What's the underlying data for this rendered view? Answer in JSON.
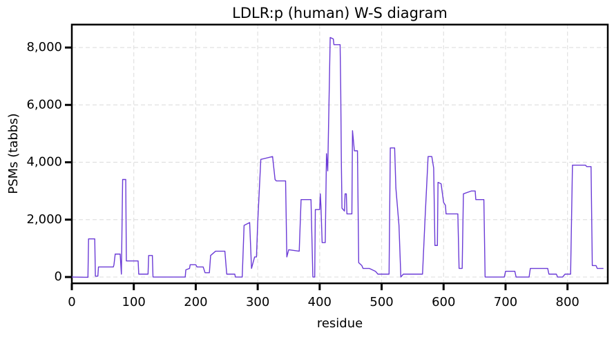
{
  "chart_data": {
    "type": "line",
    "title": "LDLR:p (human) W-S diagram",
    "x_label": "residue",
    "y_label": "PSMs (tabbs)",
    "color": "#6a3ad6",
    "grid": true,
    "xlim": [
      0,
      865
    ],
    "ylim": [
      -220,
      8800
    ],
    "xticks": [
      0,
      100,
      200,
      300,
      400,
      500,
      600,
      700,
      800
    ],
    "yticks": [
      0,
      {
        "value": 2000,
        "label": "2,000"
      },
      {
        "value": 4000,
        "label": "4,000"
      },
      {
        "value": 6000,
        "label": "6,000"
      },
      {
        "value": 8000,
        "label": "8,000"
      }
    ],
    "x": [
      0,
      26,
      27,
      37,
      38,
      42,
      43,
      67,
      68,
      70,
      78,
      80,
      82,
      87,
      88,
      107,
      108,
      123,
      124,
      130,
      131,
      183,
      184,
      190,
      191,
      200,
      202,
      212,
      215,
      222,
      224,
      232,
      247,
      250,
      263,
      264,
      275,
      278,
      287,
      290,
      295,
      298,
      300,
      305,
      324,
      328,
      330,
      345,
      347,
      350,
      367,
      370,
      386,
      389,
      392,
      393,
      400,
      401,
      402,
      404,
      409,
      411,
      413,
      417,
      422,
      423,
      433,
      434,
      435,
      436,
      440,
      441,
      443,
      444,
      452,
      453,
      456,
      461,
      463,
      468,
      470,
      480,
      490,
      494,
      512,
      514,
      521,
      523,
      528,
      531,
      535,
      566,
      570,
      575,
      581,
      584,
      586,
      590,
      591,
      596,
      600,
      603,
      604,
      623,
      625,
      630,
      632,
      645,
      651,
      652,
      665,
      667,
      698,
      700,
      715,
      717,
      738,
      740,
      768,
      770,
      782,
      784,
      792,
      796,
      805,
      808,
      829,
      831,
      838,
      840,
      846,
      848,
      858
    ],
    "values": [
      0,
      -10,
      1330,
      1330,
      30,
      30,
      350,
      350,
      430,
      800,
      800,
      100,
      3400,
      3400,
      560,
      560,
      100,
      100,
      750,
      750,
      0,
      0,
      250,
      300,
      430,
      430,
      350,
      350,
      150,
      150,
      750,
      900,
      900,
      100,
      100,
      0,
      0,
      1800,
      1900,
      300,
      700,
      700,
      1900,
      4100,
      4200,
      3400,
      3350,
      3350,
      700,
      950,
      900,
      2700,
      2700,
      0,
      0,
      2350,
      2350,
      2900,
      2500,
      1200,
      1200,
      4300,
      3700,
      8350,
      8300,
      8100,
      8100,
      6500,
      4000,
      2400,
      2300,
      2900,
      2900,
      2200,
      2200,
      5100,
      4400,
      4400,
      500,
      400,
      300,
      300,
      200,
      100,
      100,
      4500,
      4500,
      3100,
      1800,
      0,
      100,
      100,
      2000,
      4200,
      4200,
      3800,
      1100,
      1100,
      3300,
      3250,
      2600,
      2500,
      2200,
      2200,
      300,
      300,
      2900,
      3000,
      3000,
      2700,
      2700,
      0,
      0,
      200,
      200,
      0,
      0,
      300,
      300,
      100,
      100,
      0,
      0,
      100,
      100,
      3900,
      3900,
      3850,
      3850,
      400,
      400,
      300,
      300
    ]
  }
}
